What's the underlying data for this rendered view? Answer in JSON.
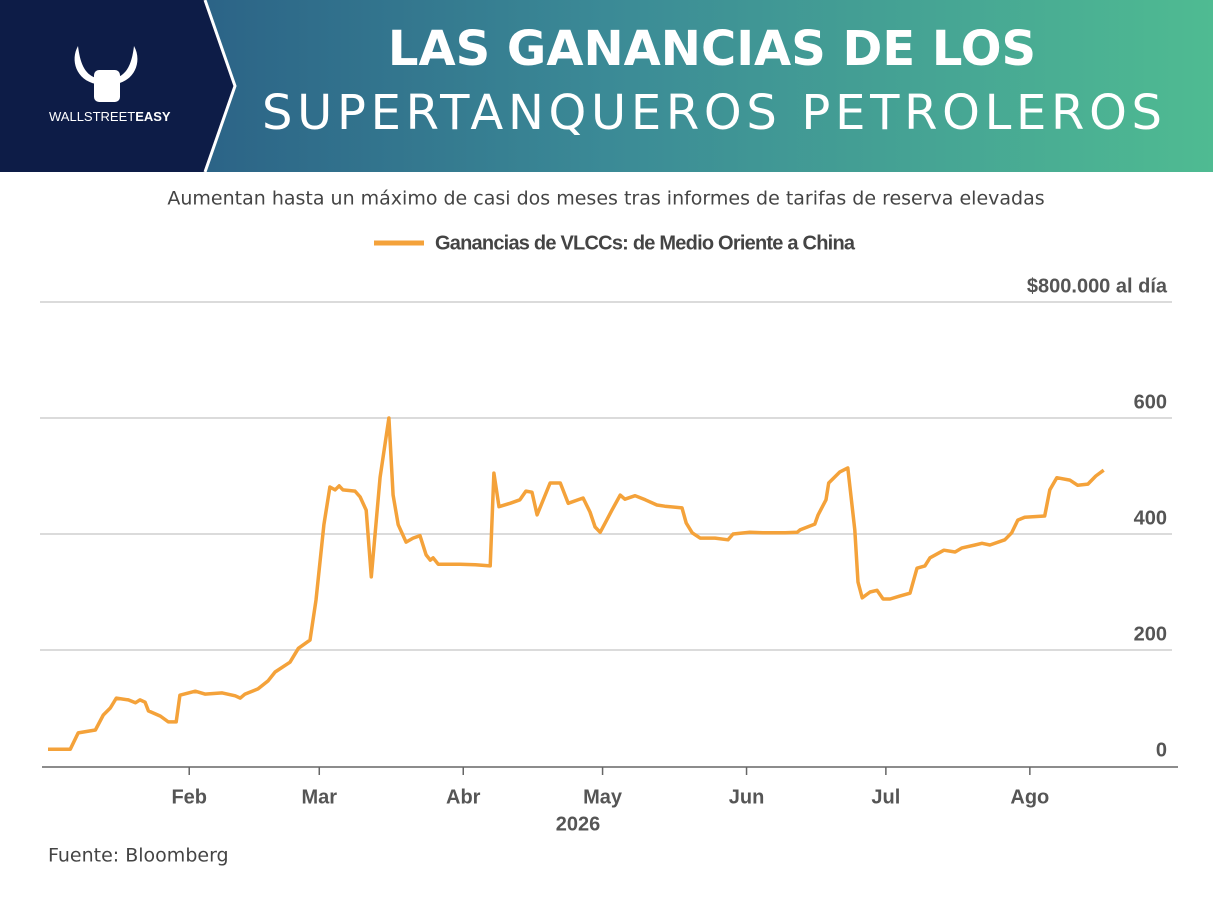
{
  "header": {
    "logo_text": "WALLSTREET",
    "logo_bold": "EASY"
  },
  "chart_data": {
    "type": "line",
    "title_lines": [
      "LAS GANANCIAS DE LOS",
      "SUPERTANQUEROS PETROLEROS"
    ],
    "subtitle": "Aumentan hasta un máximo de casi dos meses tras informes de tarifas de reserva elevadas",
    "xlabel": "2026",
    "source": "Fuente: Bloomberg",
    "xlim": [
      -0.7,
      243.9
    ],
    "ylim": [
      0,
      800
    ],
    "grid": true,
    "yticks": [
      0,
      200,
      400,
      600,
      {
        "value": 800,
        "label": "$800.000 al día"
      }
    ],
    "xticks": [
      {
        "value": 31,
        "label": "Feb"
      },
      {
        "value": 59,
        "label": "Mar"
      },
      {
        "value": 90,
        "label": "Abr"
      },
      {
        "value": 120,
        "label": "May"
      },
      {
        "value": 151,
        "label": "Jun"
      },
      {
        "value": 181,
        "label": "Jul"
      },
      {
        "value": 212,
        "label": "Ago"
      }
    ],
    "x": [
      0.6,
      5.4,
      7.1,
      10.8,
      12.5,
      14,
      15.3,
      17.9,
      19.4,
      20.4,
      21.5,
      22.2,
      24.8,
      26.5,
      28.2,
      29,
      32.3,
      34.4,
      38.1,
      40.9,
      42,
      43,
      45.8,
      48,
      49.5,
      52.7,
      54.5,
      57,
      58.3,
      60,
      61.3,
      62.4,
      63.3,
      64.1,
      66.7,
      67.8,
      69.1,
      70.2,
      72.1,
      74,
      74.9,
      76,
      77.7,
      79.2,
      80.7,
      82,
      82.9,
      83.5,
      84.6,
      89.3,
      92.6,
      95.8,
      96.6,
      97.7,
      100.1,
      102.2,
      103.5,
      104.8,
      105.9,
      108.7,
      110.9,
      112.6,
      115.8,
      117.3,
      118.4,
      119.5,
      120.7,
      122,
      123.8,
      124.8,
      127,
      129.2,
      131.7,
      133.4,
      137.1,
      138,
      139.3,
      141,
      144.2,
      147,
      148.1,
      151.7,
      154.5,
      159.3,
      161.9,
      162.5,
      165.7,
      166.4,
      168.1,
      168.7,
      171.1,
      172.8,
      174.3,
      175,
      175.9,
      177.6,
      179.1,
      180.4,
      181.9,
      184,
      186.2,
      187.7,
      189.4,
      190.5,
      193.5,
      195.9,
      197.4,
      200.2,
      201.7,
      203.4,
      206.6,
      208.1,
      209.4,
      210.9,
      215.2,
      216.3,
      217.8,
      220.6,
      222.3,
      224.5,
      226.2,
      227.9
    ],
    "series": [
      {
        "name": "Ganancias de VLCCs: de Medio Oriente a China",
        "color": "#f4a23a",
        "values": [
          29,
          29,
          57,
          62,
          88,
          100,
          117,
          114,
          109,
          114,
          110,
          95,
          86,
          76,
          76,
          122,
          129,
          124,
          126,
          121,
          117,
          124,
          133,
          147,
          162,
          179,
          203,
          217,
          286,
          416,
          481,
          476,
          483,
          476,
          474,
          464,
          441,
          326,
          498,
          600,
          467,
          416,
          386,
          393,
          397,
          364,
          355,
          359,
          348,
          348,
          347,
          345,
          505,
          447,
          453,
          459,
          474,
          472,
          433,
          488,
          488,
          453,
          462,
          438,
          412,
          403,
          421,
          441,
          467,
          460,
          466,
          459,
          450,
          448,
          445,
          419,
          402,
          393,
          393,
          390,
          400,
          403,
          402,
          402,
          403,
          407,
          417,
          433,
          459,
          488,
          507,
          514,
          407,
          317,
          290,
          300,
          303,
          288,
          288,
          293,
          298,
          341,
          345,
          359,
          372,
          369,
          376,
          381,
          384,
          381,
          390,
          402,
          424,
          429,
          431,
          476,
          497,
          493,
          484,
          486,
          500,
          510
        ]
      }
    ]
  }
}
